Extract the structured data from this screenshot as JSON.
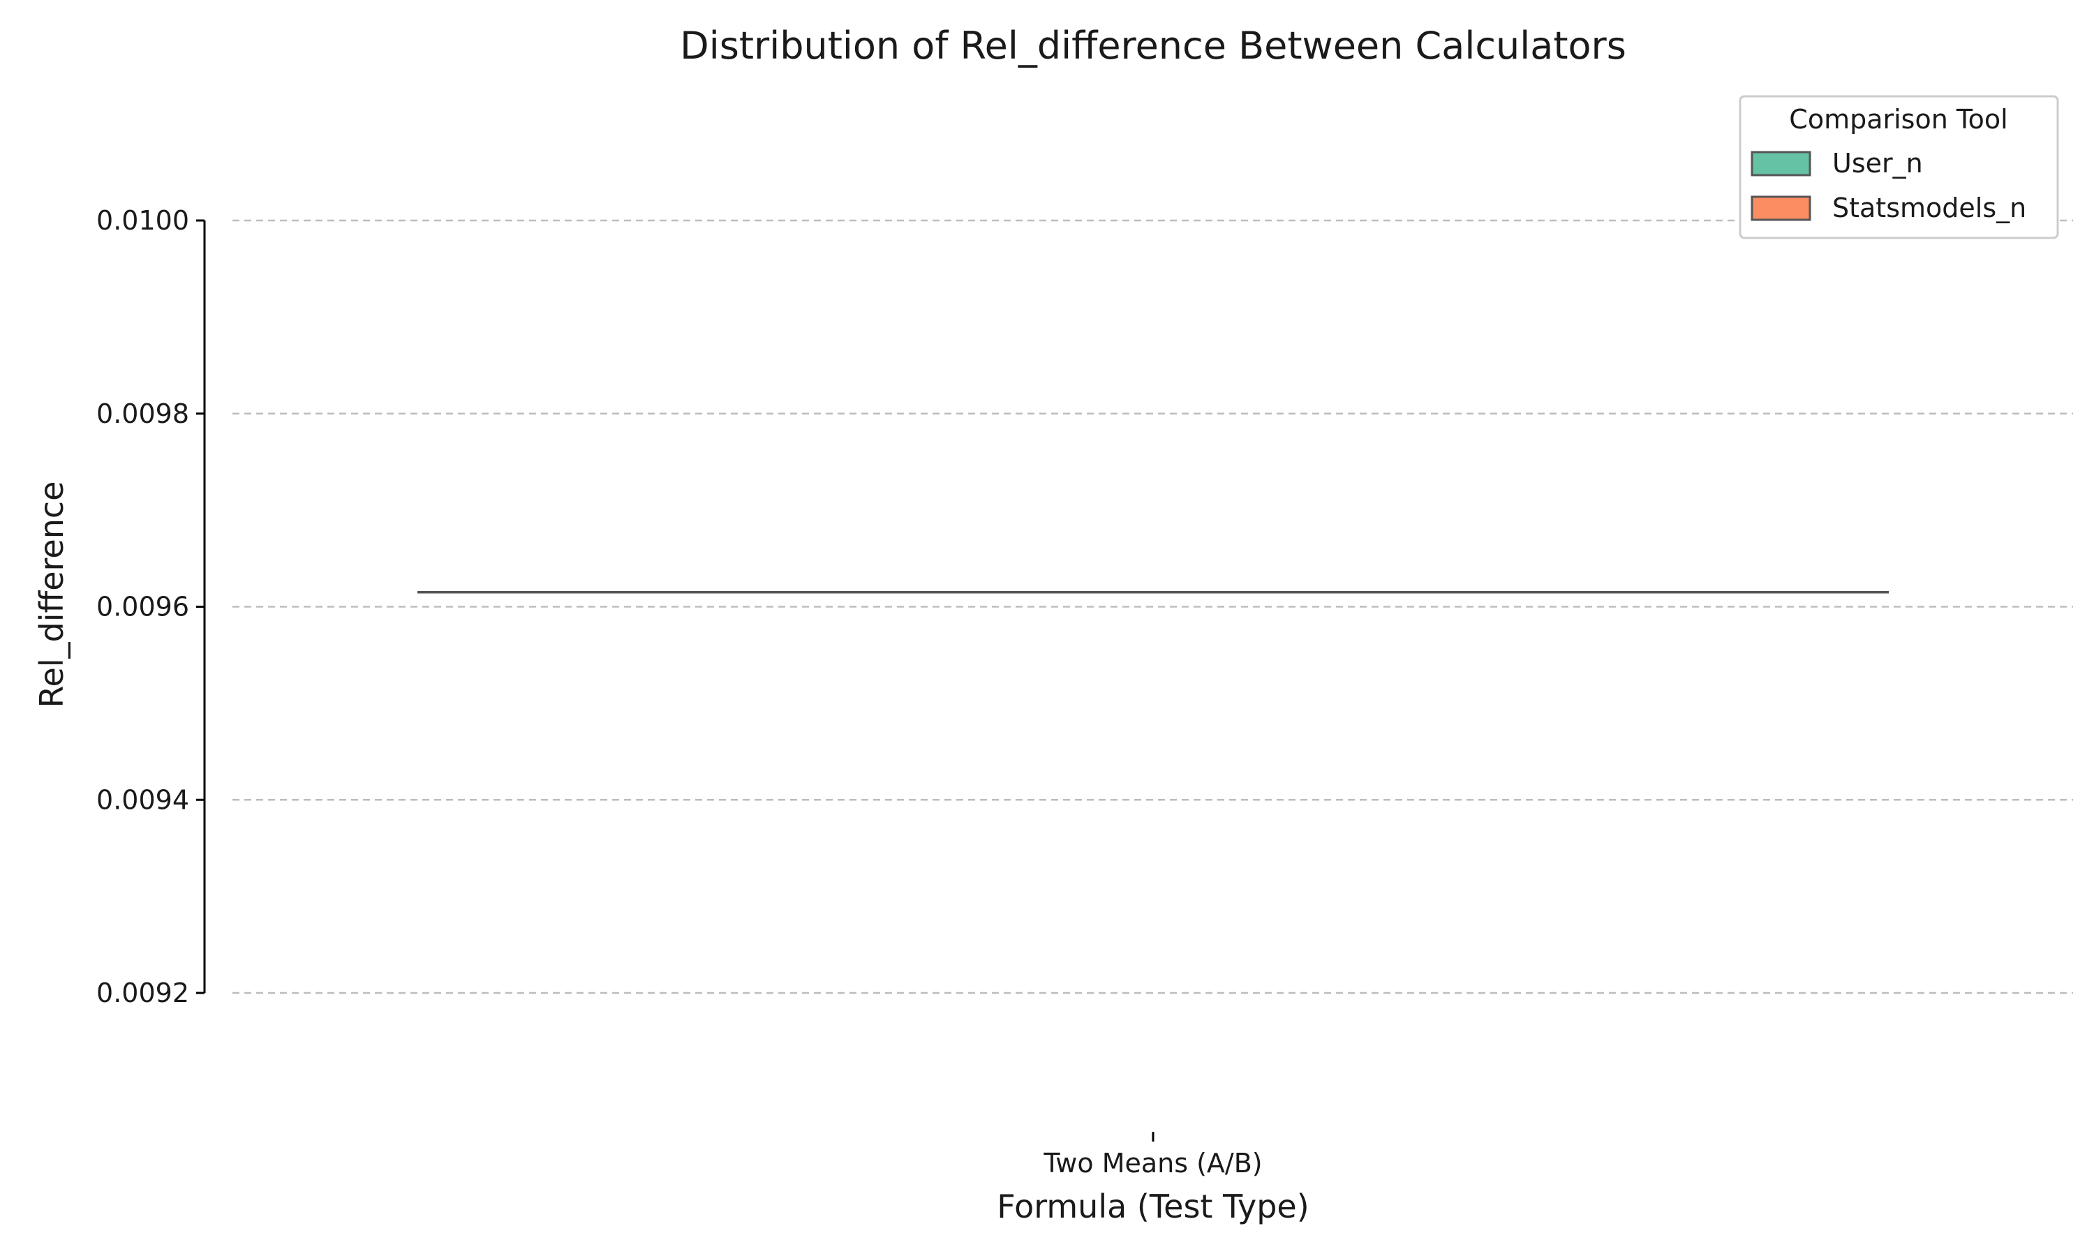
{
  "chart_data": {
    "type": "violin",
    "title": "Distribution of Rel_difference Between Calculators",
    "xlabel": "Formula (Test Type)",
    "ylabel": "Rel_difference",
    "categories": [
      "Two Means (A/B)"
    ],
    "ylim": [
      0.0092,
      0.01
    ],
    "yticks": [
      "0.0092",
      "0.0094",
      "0.0096",
      "0.0098",
      "0.0100"
    ],
    "grid": "horizontal-dashed",
    "legend": {
      "title": "Comparison Tool",
      "position": "top-right"
    },
    "series": [
      {
        "name": "User_n",
        "color": "#66c2a5",
        "values": [
          0.009615
        ]
      },
      {
        "name": "Statsmodels_n",
        "color": "#fc8d62",
        "values": [
          0.009615
        ]
      }
    ]
  }
}
